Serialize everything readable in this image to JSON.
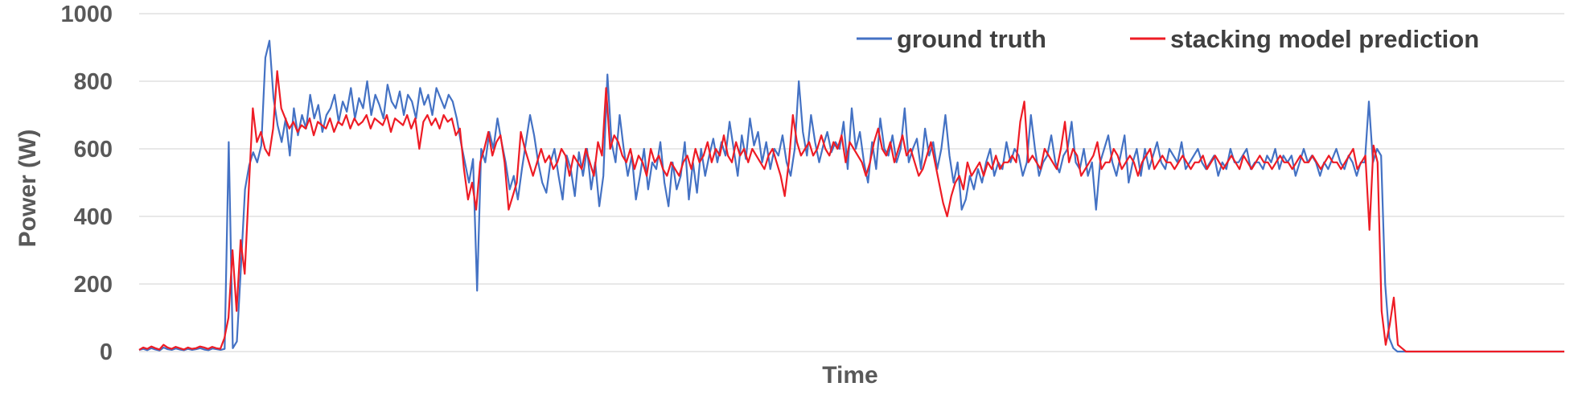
{
  "chart_data": {
    "type": "line",
    "xlabel": "Time",
    "ylabel": "Power (W)",
    "ylim": [
      0,
      1000
    ],
    "yticks": [
      0,
      200,
      400,
      600,
      800,
      1000
    ],
    "grid": true,
    "legend_position": "top-right",
    "series": [
      {
        "name": "ground truth",
        "color": "#4472C4",
        "values": [
          5,
          8,
          4,
          10,
          6,
          3,
          12,
          7,
          5,
          9,
          6,
          4,
          8,
          5,
          7,
          10,
          6,
          4,
          9,
          7,
          5,
          8,
          620,
          10,
          30,
          250,
          480,
          550,
          590,
          560,
          610,
          870,
          920,
          750,
          670,
          620,
          690,
          580,
          720,
          640,
          700,
          660,
          760,
          690,
          730,
          650,
          700,
          720,
          760,
          680,
          740,
          710,
          780,
          690,
          750,
          720,
          800,
          700,
          760,
          730,
          690,
          790,
          740,
          720,
          770,
          700,
          760,
          740,
          690,
          780,
          730,
          760,
          700,
          780,
          750,
          720,
          760,
          740,
          690,
          620,
          560,
          500,
          570,
          180,
          600,
          560,
          650,
          600,
          690,
          620,
          560,
          480,
          520,
          450,
          540,
          620,
          700,
          640,
          560,
          500,
          470,
          560,
          600,
          520,
          450,
          580,
          540,
          460,
          590,
          520,
          600,
          480,
          560,
          430,
          520,
          820,
          620,
          560,
          700,
          600,
          520,
          580,
          450,
          520,
          600,
          480,
          560,
          540,
          620,
          500,
          430,
          560,
          480,
          520,
          620,
          450,
          560,
          470,
          600,
          520,
          580,
          630,
          560,
          620,
          580,
          680,
          600,
          520,
          640,
          570,
          690,
          610,
          650,
          560,
          620,
          540,
          600,
          580,
          640,
          560,
          520,
          600,
          800,
          650,
          580,
          700,
          620,
          560,
          610,
          650,
          590,
          620,
          600,
          680,
          540,
          720,
          600,
          650,
          560,
          500,
          620,
          540,
          690,
          600,
          580,
          640,
          560,
          600,
          720,
          560,
          600,
          630,
          540,
          660,
          580,
          620,
          540,
          600,
          700,
          580,
          500,
          560,
          420,
          450,
          520,
          480,
          540,
          500,
          560,
          600,
          520,
          560,
          540,
          620,
          560,
          600,
          580,
          520,
          560,
          700,
          600,
          520,
          560,
          580,
          640,
          560,
          530,
          580,
          600,
          680,
          560,
          540,
          600,
          520,
          560,
          420,
          560,
          600,
          640,
          560,
          520,
          580,
          640,
          500,
          560,
          600,
          520,
          600,
          540,
          580,
          620,
          560,
          540,
          600,
          580,
          560,
          620,
          540,
          560,
          580,
          600,
          560,
          540,
          560,
          580,
          520,
          560,
          540,
          600,
          560,
          560,
          580,
          600,
          540,
          560,
          560,
          540,
          580,
          560,
          600,
          540,
          580,
          560,
          580,
          520,
          560,
          600,
          560,
          580,
          560,
          520,
          560,
          540,
          570,
          600,
          560,
          540,
          580,
          560,
          520,
          560,
          560,
          740,
          560,
          600,
          580,
          200,
          40,
          10,
          0,
          0,
          0,
          0,
          0,
          0,
          0,
          0,
          0,
          0,
          0,
          0,
          0,
          0,
          0,
          0,
          0,
          0,
          0,
          0,
          0,
          0,
          0,
          0,
          0,
          0,
          0,
          0,
          0,
          0,
          0,
          0,
          0,
          0,
          0,
          0,
          0,
          0,
          0,
          0,
          0,
          0
        ]
      },
      {
        "name": "stacking model prediction",
        "color": "#EE1C25",
        "values": [
          5,
          12,
          8,
          15,
          10,
          6,
          20,
          12,
          8,
          14,
          10,
          6,
          12,
          8,
          10,
          15,
          12,
          8,
          14,
          10,
          8,
          40,
          100,
          300,
          120,
          330,
          230,
          480,
          720,
          620,
          650,
          600,
          580,
          660,
          830,
          720,
          690,
          660,
          680,
          650,
          670,
          660,
          690,
          640,
          680,
          670,
          660,
          690,
          650,
          680,
          670,
          700,
          660,
          690,
          670,
          680,
          700,
          660,
          690,
          680,
          670,
          700,
          650,
          690,
          680,
          670,
          700,
          660,
          690,
          600,
          680,
          700,
          670,
          690,
          660,
          700,
          680,
          690,
          640,
          660,
          540,
          450,
          500,
          420,
          560,
          600,
          650,
          580,
          620,
          640,
          560,
          420,
          460,
          500,
          650,
          600,
          560,
          520,
          560,
          600,
          560,
          580,
          540,
          560,
          600,
          580,
          520,
          580,
          560,
          540,
          600,
          560,
          520,
          620,
          580,
          780,
          600,
          640,
          620,
          580,
          560,
          600,
          540,
          580,
          560,
          520,
          600,
          560,
          580,
          540,
          520,
          560,
          540,
          520,
          560,
          580,
          540,
          600,
          560,
          580,
          620,
          560,
          600,
          580,
          640,
          580,
          560,
          620,
          580,
          600,
          560,
          600,
          580,
          560,
          540,
          580,
          600,
          560,
          520,
          460,
          560,
          700,
          620,
          580,
          600,
          620,
          580,
          600,
          640,
          600,
          580,
          620,
          600,
          640,
          560,
          620,
          600,
          580,
          560,
          520,
          560,
          620,
          660,
          600,
          580,
          620,
          560,
          600,
          640,
          580,
          600,
          560,
          520,
          540,
          580,
          620,
          560,
          500,
          440,
          400,
          460,
          500,
          520,
          480,
          560,
          520,
          540,
          560,
          520,
          560,
          540,
          580,
          540,
          560,
          560,
          580,
          560,
          680,
          740,
          560,
          580,
          560,
          540,
          600,
          580,
          560,
          540,
          600,
          680,
          560,
          600,
          580,
          520,
          540,
          560,
          580,
          620,
          540,
          560,
          560,
          600,
          580,
          540,
          560,
          580,
          560,
          520,
          560,
          580,
          600,
          540,
          560,
          580,
          560,
          560,
          540,
          560,
          580,
          560,
          540,
          560,
          560,
          580,
          540,
          560,
          580,
          560,
          540,
          560,
          580,
          560,
          540,
          580,
          560,
          540,
          560,
          580,
          560,
          560,
          540,
          560,
          580,
          560,
          560,
          540,
          560,
          580,
          560,
          560,
          580,
          560,
          540,
          560,
          580,
          560,
          560,
          540,
          560,
          580,
          600,
          540,
          560,
          580,
          360,
          610,
          560,
          120,
          20,
          80,
          160,
          20,
          10,
          0,
          0,
          0,
          0,
          0,
          0,
          0,
          0,
          0,
          0,
          0,
          0,
          0,
          0,
          0,
          0,
          0,
          0,
          0,
          0,
          0,
          0,
          0,
          0,
          0,
          0,
          0,
          0,
          0,
          0,
          0,
          0,
          0,
          0,
          0,
          0,
          0,
          0,
          0,
          0
        ]
      }
    ]
  }
}
